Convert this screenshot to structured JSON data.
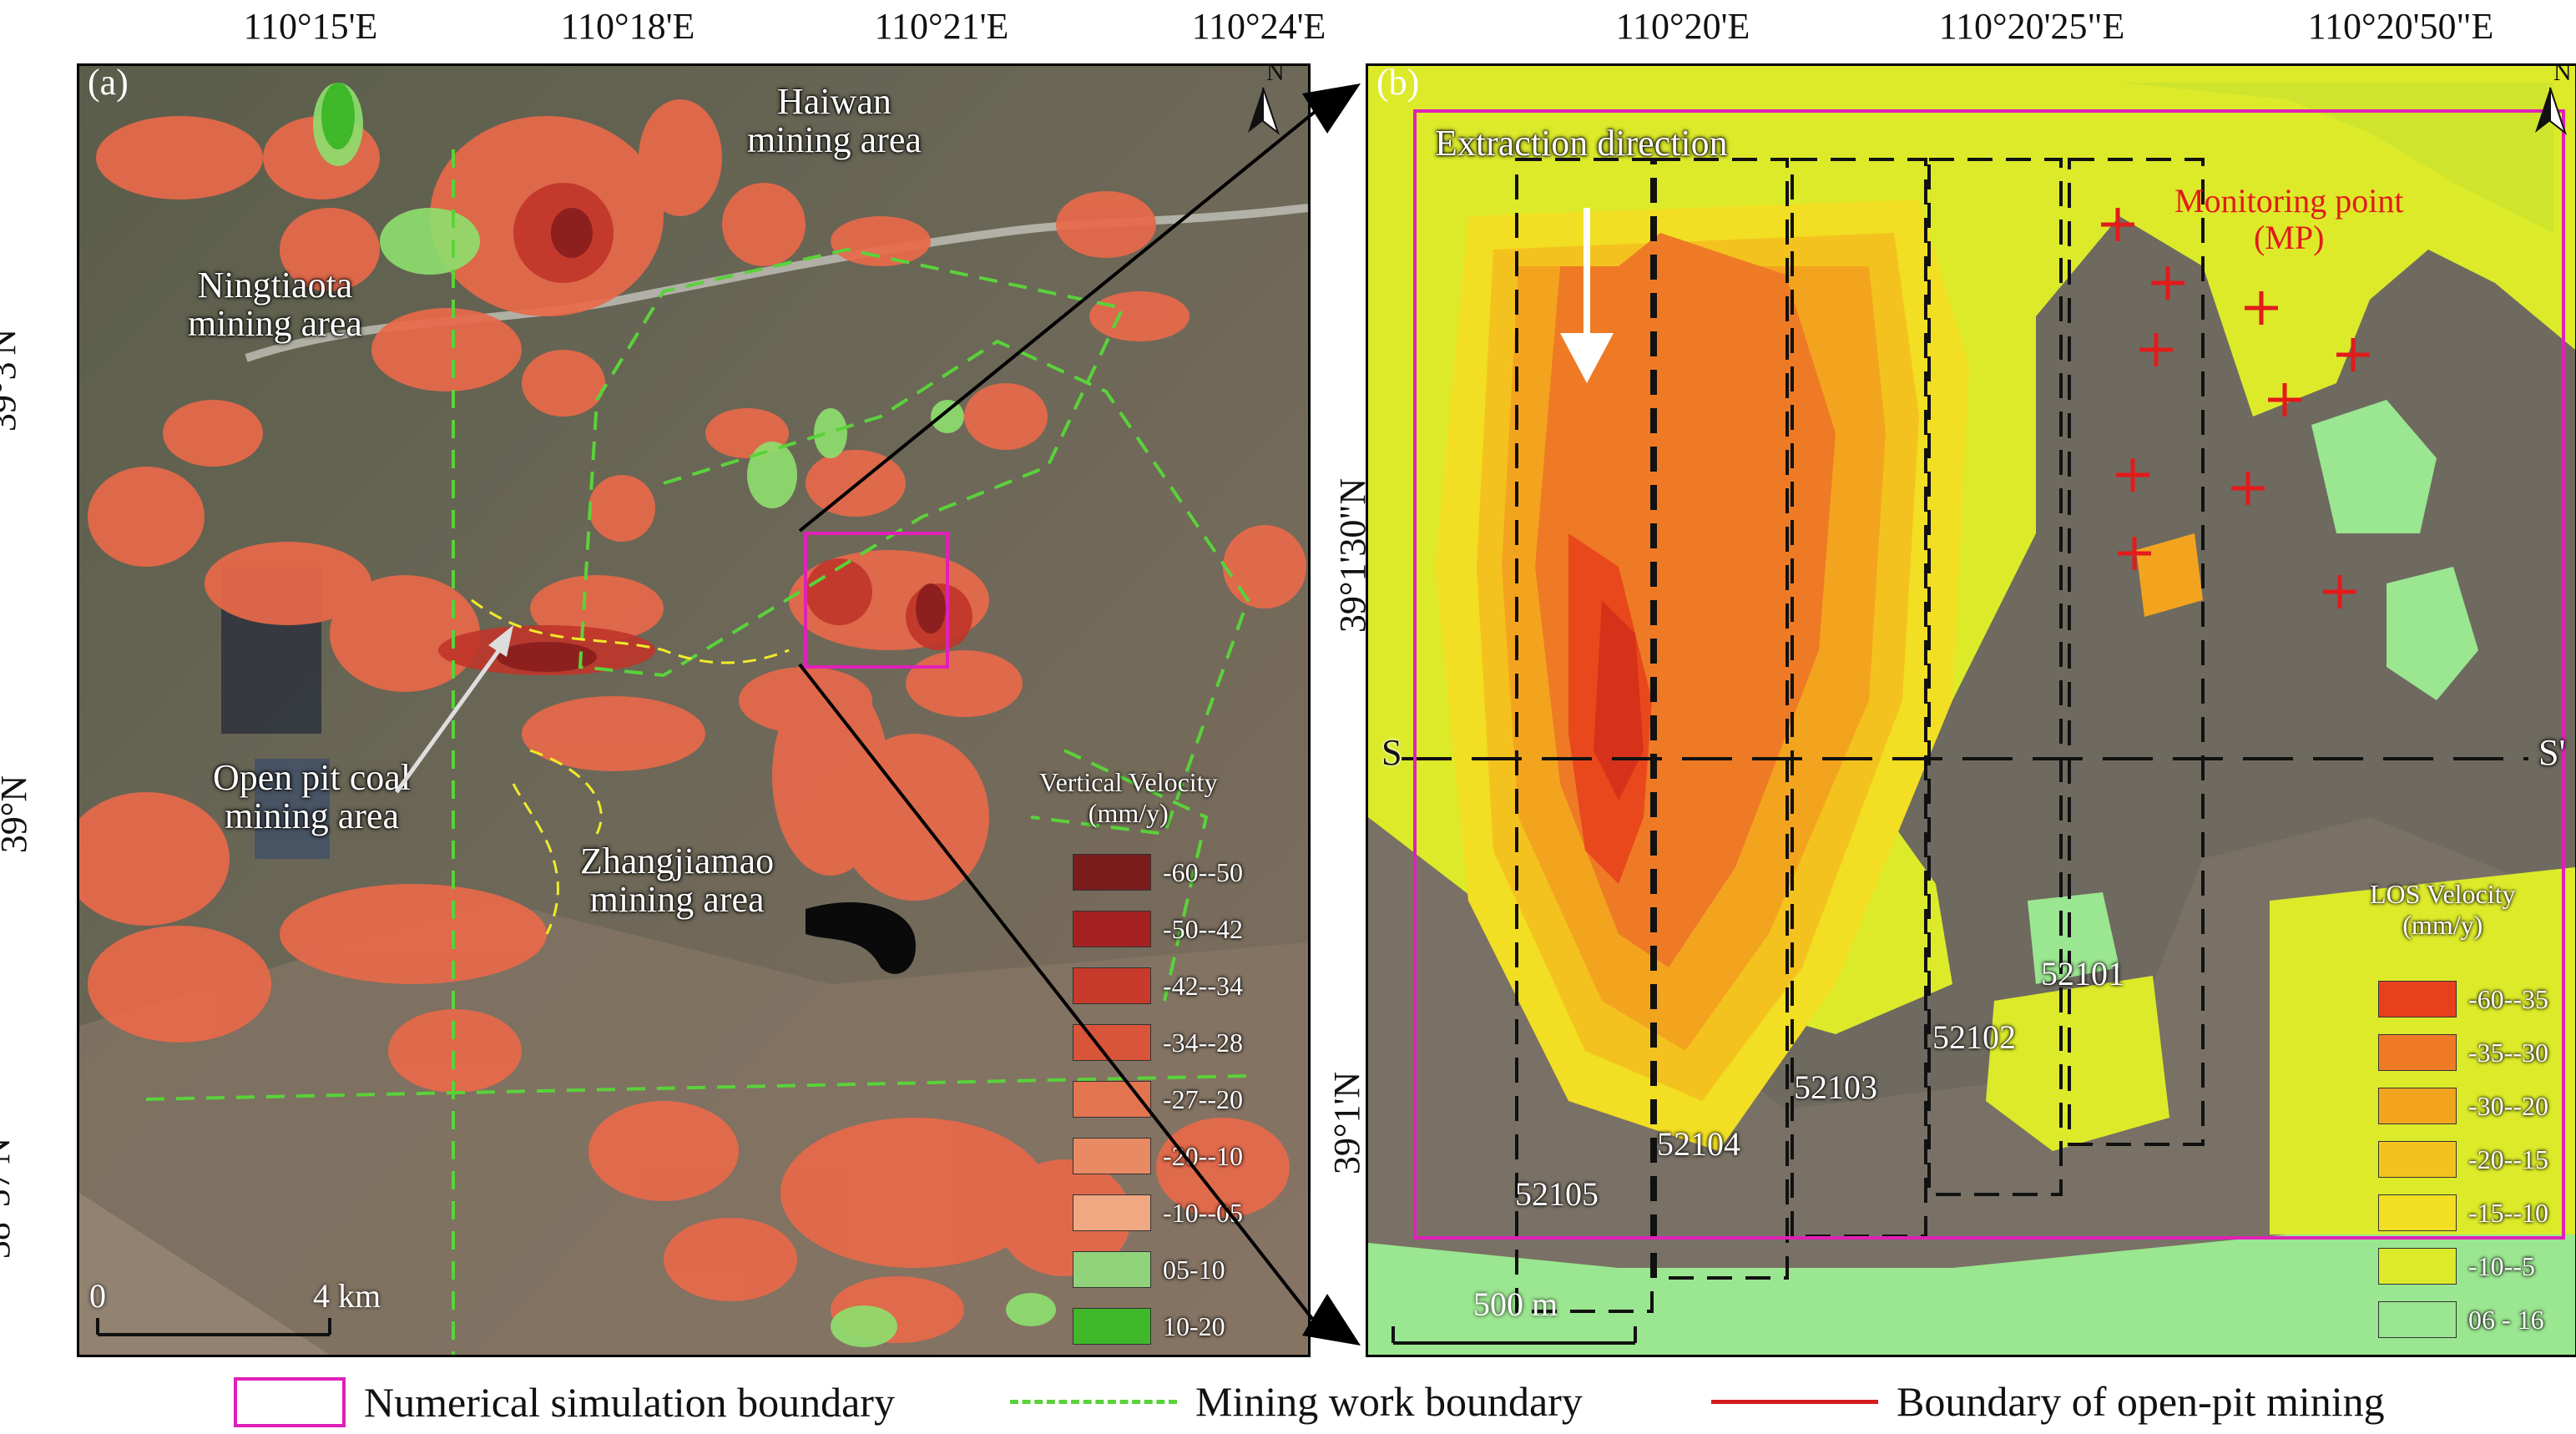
{
  "panel_a": {
    "tag": "(a)",
    "lon_ticks": [
      "110°15'E",
      "110°18'E",
      "110°21'E",
      "110°24'E"
    ],
    "lat_ticks": [
      "39°3'N",
      "39°N",
      "38°57'N"
    ],
    "north": "N",
    "places": {
      "haiwan": "Haiwan\nmining area",
      "ningtiaota": "Ningtiaota\nmining area",
      "openpit": "Open pit coal\nmining area",
      "zhangjiamao": "Zhangjiamao\nmining area"
    },
    "scalebar": {
      "start": "0",
      "end": "4 km"
    },
    "legend": {
      "title": "Vertical Velocity\n(mm/y)",
      "items": [
        {
          "label": "-60--50",
          "color": "#7a1c1c"
        },
        {
          "label": "-50--42",
          "color": "#a52121"
        },
        {
          "label": "-42--34",
          "color": "#c83a2c"
        },
        {
          "label": "-34--28",
          "color": "#d8553a"
        },
        {
          "label": "-27--20",
          "color": "#e27450"
        },
        {
          "label": "-20--10",
          "color": "#e88a63"
        },
        {
          "label": "-10--05",
          "color": "#f0a882"
        },
        {
          "label": "05-10",
          "color": "#90d37a"
        },
        {
          "label": "10-20",
          "color": "#3fb82a"
        }
      ]
    }
  },
  "panel_b": {
    "tag": "(b)",
    "lon_ticks": [
      "110°20'E",
      "110°20'25\"E",
      "110°20'50\"E"
    ],
    "lat_ticks": [
      "39°1'30\"N",
      "39°1'N"
    ],
    "north": "N",
    "extraction_direction": "Extraction direction",
    "monitoring_point": "Monitoring point\n(MP)",
    "section_start": "S",
    "section_end": "S'",
    "faces": [
      "52101",
      "52102",
      "52103",
      "52104",
      "52105"
    ],
    "scalebar": "500  m",
    "legend": {
      "title": "LOS Velocity\n(mm/y)",
      "items": [
        {
          "label": "-60--35",
          "color": "#e8401c"
        },
        {
          "label": "-35--30",
          "color": "#ee7a26"
        },
        {
          "label": "-30--20",
          "color": "#f3a41e"
        },
        {
          "label": "-20--15",
          "color": "#f4c21e"
        },
        {
          "label": "-15--10",
          "color": "#f2de22"
        },
        {
          "label": "-10--5",
          "color": "#dcea2a"
        },
        {
          "label": "06 - 16",
          "color": "#9be690"
        }
      ]
    }
  },
  "bottom_legend": {
    "simulation": "Numerical simulation boundary",
    "work": "Mining work boundary",
    "openpit": "Boundary of open-pit mining",
    "colors": {
      "simulation": "#e020b8",
      "work": "#5ad23a",
      "openpit": "#d41c1c"
    }
  }
}
